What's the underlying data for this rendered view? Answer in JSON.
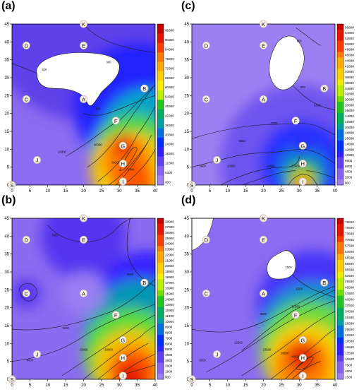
{
  "figure": {
    "x_ticks": [
      0,
      5,
      10,
      15,
      20,
      25,
      30,
      35,
      40
    ],
    "y_ticks": [
      0,
      5,
      10,
      15,
      20,
      25,
      30,
      35,
      40,
      45
    ],
    "xlim": [
      0,
      40
    ],
    "ylim": [
      0,
      45
    ]
  },
  "points": [
    {
      "id": "K",
      "x": 20,
      "y": 45
    },
    {
      "id": "D",
      "x": 4,
      "y": 39
    },
    {
      "id": "E",
      "x": 20,
      "y": 39
    },
    {
      "id": "B",
      "x": 37,
      "y": 27
    },
    {
      "id": "C",
      "x": 4,
      "y": 24
    },
    {
      "id": "A",
      "x": 20,
      "y": 24
    },
    {
      "id": "F",
      "x": 29,
      "y": 18
    },
    {
      "id": "G",
      "x": 31,
      "y": 11
    },
    {
      "id": "J",
      "x": 7,
      "y": 7
    },
    {
      "id": "H",
      "x": 31,
      "y": 6
    },
    {
      "id": "I",
      "x": 31,
      "y": 1
    },
    {
      "id": "S",
      "x": 0,
      "y": 0
    }
  ],
  "chart_data": [
    {
      "type": "heatmap",
      "panel": "(a)",
      "colorbar_labels": [
        "96300",
        "90300",
        "84300",
        "78300",
        "72300",
        "66300",
        "60300",
        "54300",
        "48300",
        "42300",
        "36300",
        "30300",
        "24300",
        "18300",
        "12300",
        "6300",
        "300"
      ],
      "contour_labels": [
        {
          "text": "300",
          "x": 9,
          "y": 32
        },
        {
          "text": "300",
          "x": 27,
          "y": 34
        },
        {
          "text": "300",
          "x": 24,
          "y": 21
        },
        {
          "text": "24300",
          "x": 14,
          "y": 9
        },
        {
          "text": "48300",
          "x": 24,
          "y": 11
        },
        {
          "text": "66300",
          "x": 29,
          "y": 6
        },
        {
          "text": "72300",
          "x": 33,
          "y": 4
        }
      ],
      "hole": true
    },
    {
      "type": "heatmap",
      "panel": "(b)",
      "colorbar_labels": [
        "28900",
        "27900",
        "26900",
        "25900",
        "24900",
        "23900",
        "22900",
        "21900",
        "20900",
        "19900",
        "18900",
        "17900",
        "16900",
        "15900",
        "14900",
        "13900",
        "12900",
        "11900",
        "10900",
        "9900",
        "8900",
        "7900",
        "6900",
        "5900",
        "4900",
        "3900",
        "2900",
        "1900",
        "900"
      ],
      "contour_labels": [
        {
          "text": "3900",
          "x": 12,
          "y": 40
        },
        {
          "text": "3900",
          "x": 33,
          "y": 29
        },
        {
          "text": "3400",
          "x": 15,
          "y": 14
        },
        {
          "text": "3400",
          "x": 5,
          "y": 5
        },
        {
          "text": "15900",
          "x": 20,
          "y": 8
        },
        {
          "text": "18900",
          "x": 27,
          "y": 8
        },
        {
          "text": "22900",
          "x": 31,
          "y": 6
        }
      ],
      "hole": false
    },
    {
      "type": "heatmap",
      "panel": "(c)",
      "colorbar_labels": [
        "56800",
        "54800",
        "52800",
        "50800",
        "48800",
        "46800",
        "44800",
        "42800",
        "40800",
        "38800",
        "36800",
        "34800",
        "32800",
        "30800",
        "28800",
        "26800",
        "24800",
        "22800",
        "20800",
        "18800",
        "16800",
        "14800",
        "12800",
        "10800",
        "8800",
        "6800",
        "4800",
        "2800",
        "800"
      ],
      "contour_labels": [
        {
          "text": "800",
          "x": 30,
          "y": 40
        },
        {
          "text": "800",
          "x": 31,
          "y": 27
        },
        {
          "text": "3300",
          "x": 35,
          "y": 22
        },
        {
          "text": "3300",
          "x": 23,
          "y": 17
        },
        {
          "text": "5800",
          "x": 14,
          "y": 12
        },
        {
          "text": "5800",
          "x": 3,
          "y": 5
        },
        {
          "text": "10800",
          "x": 11,
          "y": 5
        },
        {
          "text": "10800",
          "x": 22,
          "y": 5
        },
        {
          "text": "15800",
          "x": 29,
          "y": 5
        }
      ],
      "hole": true
    },
    {
      "type": "heatmap",
      "panel": "(d)",
      "colorbar_labels": [
        "79500",
        "76500",
        "73500",
        "70500",
        "67500",
        "64500",
        "61500",
        "58500",
        "55500",
        "52500",
        "49500",
        "46500",
        "43500",
        "40500",
        "37500",
        "34500",
        "31500",
        "28500",
        "25500",
        "22500",
        "19500",
        "16500",
        "13500",
        "10500",
        "7500",
        "4500",
        "1500"
      ],
      "contour_labels": [
        {
          "text": "1500",
          "x": 27,
          "y": 31
        },
        {
          "text": "1500",
          "x": 30,
          "y": 25
        },
        {
          "text": "6500",
          "x": 20,
          "y": 18
        },
        {
          "text": "6500",
          "x": 3,
          "y": 5
        },
        {
          "text": "11500",
          "x": 29,
          "y": 20
        },
        {
          "text": "12500",
          "x": 13,
          "y": 10
        },
        {
          "text": "23500",
          "x": 21,
          "y": 8
        },
        {
          "text": "38500",
          "x": 26,
          "y": 7
        },
        {
          "text": "40500",
          "x": 29,
          "y": 6
        }
      ],
      "hole": true
    }
  ]
}
